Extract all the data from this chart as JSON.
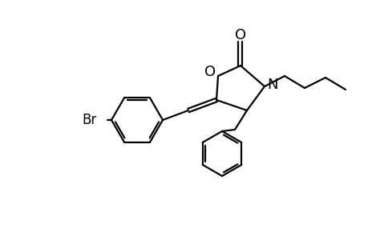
{
  "bg_color": "#ffffff",
  "line_color": "#000000",
  "line_width": 1.6,
  "font_size_label": 12,
  "figsize": [
    4.6,
    3.0
  ],
  "dpi": 100,
  "ring_O_label": "O",
  "ring_N_label": "N",
  "carbonyl_O_label": "O",
  "Br_label": "Br"
}
